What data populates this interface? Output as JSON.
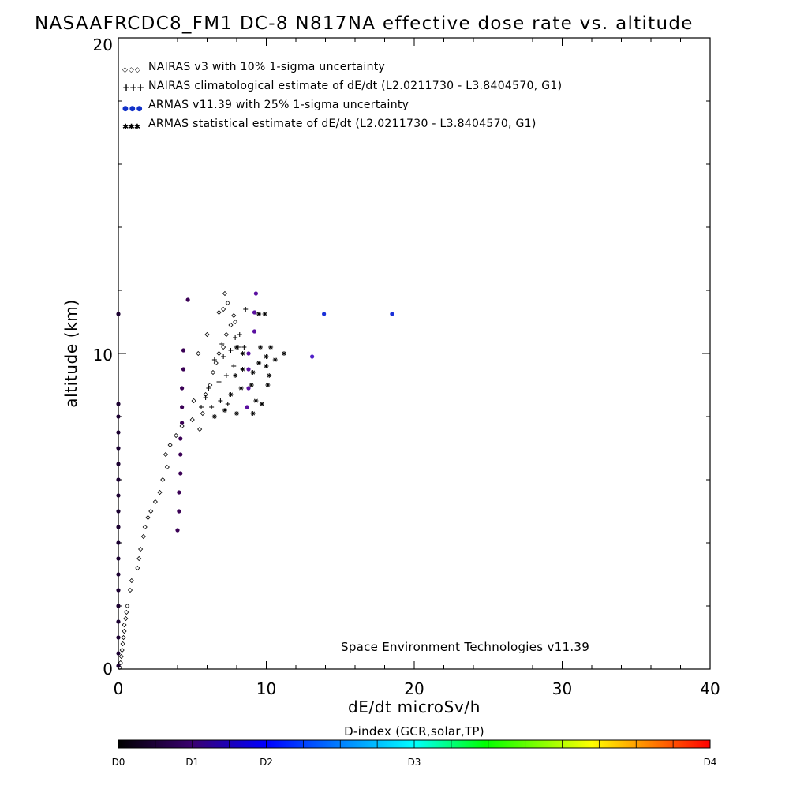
{
  "chart_data": {
    "type": "scatter",
    "title": "NASAAFRCDC8_FM1 DC-8   N817NA effective dose rate vs. altitude",
    "xlabel": "dE/dt microSv/h",
    "ylabel": "altitude (km)",
    "xlim": [
      0,
      40
    ],
    "ylim": [
      0,
      20
    ],
    "x_ticks": [
      "0",
      "10",
      "20",
      "30",
      "40"
    ],
    "y_ticks": [
      "0",
      "10",
      "20"
    ],
    "legend": {
      "placement": "top-left",
      "entries": [
        {
          "marker": "◇◇◇",
          "label": "NAIRAS v3 with 10% 1-sigma uncertainty"
        },
        {
          "marker": "+++",
          "label": "NAIRAS climatological estimate of dE/dt (L2.0211730 - L3.8404570, G1)"
        },
        {
          "marker": "●●●",
          "label": "ARMAS v11.39 with 25% 1-sigma uncertainty"
        },
        {
          "marker": "✱✱✱",
          "label": "ARMAS statistical estimate of dE/dt (L2.0211730 - L3.8404570, G1)"
        }
      ]
    },
    "annotation": "Space Environment Technologies v11.39",
    "colorbar": {
      "title": "D-index (GCR,solar,TP)",
      "labels": [
        "D0",
        "D1",
        "D2",
        "D3",
        "D4"
      ],
      "colors": [
        "#000000",
        "#3a0070",
        "#0000ff",
        "#00ffff",
        "#00ff00",
        "#ffff00",
        "#ff0000"
      ]
    },
    "series": [
      {
        "name": "NAIRAS v3 with 10% 1-sigma uncertainty",
        "marker": "diamond",
        "points": [
          [
            0.1,
            0.05
          ],
          [
            0.15,
            0.2
          ],
          [
            0.2,
            0.4
          ],
          [
            0.25,
            0.6
          ],
          [
            0.3,
            0.8
          ],
          [
            0.35,
            1.0
          ],
          [
            0.4,
            1.2
          ],
          [
            0.4,
            1.4
          ],
          [
            0.5,
            1.6
          ],
          [
            0.55,
            1.8
          ],
          [
            0.6,
            2.0
          ],
          [
            0.8,
            2.5
          ],
          [
            0.9,
            2.8
          ],
          [
            1.3,
            3.2
          ],
          [
            1.4,
            3.5
          ],
          [
            1.5,
            3.8
          ],
          [
            1.7,
            4.2
          ],
          [
            1.8,
            4.5
          ],
          [
            2.0,
            4.8
          ],
          [
            2.2,
            5.0
          ],
          [
            2.5,
            5.3
          ],
          [
            2.8,
            5.6
          ],
          [
            3.0,
            6.0
          ],
          [
            3.3,
            6.4
          ],
          [
            3.2,
            6.8
          ],
          [
            3.5,
            7.1
          ],
          [
            3.9,
            7.4
          ],
          [
            4.3,
            7.7
          ],
          [
            5.0,
            7.9
          ],
          [
            5.5,
            7.6
          ],
          [
            5.7,
            8.1
          ],
          [
            5.1,
            8.5
          ],
          [
            5.9,
            8.7
          ],
          [
            6.2,
            9.0
          ],
          [
            6.4,
            9.4
          ],
          [
            6.6,
            9.7
          ],
          [
            6.8,
            10.0
          ],
          [
            7.1,
            10.2
          ],
          [
            7.3,
            10.6
          ],
          [
            7.6,
            10.9
          ],
          [
            7.8,
            11.2
          ],
          [
            7.1,
            11.4
          ],
          [
            7.4,
            11.6
          ],
          [
            7.2,
            11.9
          ],
          [
            6.8,
            11.3
          ],
          [
            6.0,
            10.6
          ],
          [
            5.4,
            10.0
          ],
          [
            7.9,
            11.0
          ]
        ]
      },
      {
        "name": "NAIRAS climatological estimate of dE/dt (L2.0211730 - L3.8404570, G1)",
        "marker": "plus",
        "points": [
          [
            5.6,
            8.3
          ],
          [
            5.9,
            8.6
          ],
          [
            6.3,
            8.3
          ],
          [
            6.9,
            8.5
          ],
          [
            7.4,
            8.4
          ],
          [
            6.1,
            8.9
          ],
          [
            6.8,
            9.1
          ],
          [
            7.3,
            9.3
          ],
          [
            7.8,
            9.6
          ],
          [
            6.5,
            9.8
          ],
          [
            7.1,
            9.9
          ],
          [
            7.6,
            10.1
          ],
          [
            8.1,
            10.2
          ],
          [
            7.0,
            10.3
          ],
          [
            8.5,
            10.2
          ],
          [
            8.2,
            10.6
          ],
          [
            7.9,
            10.5
          ],
          [
            8.6,
            11.4
          ],
          [
            9.3,
            11.3
          ]
        ]
      },
      {
        "name": "ARMAS v11.39 with 25% 1-sigma uncertainty",
        "marker": "dot",
        "points": [
          [
            0,
            11.25
          ],
          [
            0,
            8.4
          ],
          [
            0,
            8.0
          ],
          [
            0,
            7.5
          ],
          [
            0,
            7.0
          ],
          [
            0,
            6.5
          ],
          [
            0,
            6.0
          ],
          [
            0,
            5.5
          ],
          [
            0,
            5.0
          ],
          [
            0,
            4.5
          ],
          [
            0,
            4.0
          ],
          [
            0,
            3.5
          ],
          [
            0,
            3.0
          ],
          [
            0,
            2.5
          ],
          [
            0,
            2.0
          ],
          [
            0,
            1.5
          ],
          [
            0,
            1.0
          ],
          [
            0,
            0.5
          ],
          [
            0,
            0.1
          ],
          [
            4.0,
            4.4
          ],
          [
            4.1,
            5.0
          ],
          [
            4.1,
            5.6
          ],
          [
            4.2,
            6.2
          ],
          [
            4.2,
            6.8
          ],
          [
            4.2,
            7.3
          ],
          [
            4.3,
            7.8
          ],
          [
            4.3,
            8.3
          ],
          [
            4.3,
            8.9
          ],
          [
            4.4,
            9.5
          ],
          [
            4.4,
            10.1
          ],
          [
            4.7,
            11.7
          ],
          [
            8.7,
            8.3
          ],
          [
            8.8,
            8.9
          ],
          [
            8.8,
            9.5
          ],
          [
            8.8,
            10.0
          ],
          [
            9.2,
            10.7
          ],
          [
            9.2,
            11.3
          ],
          [
            9.3,
            11.9
          ],
          [
            13.1,
            9.9
          ],
          [
            13.9,
            11.25
          ],
          [
            18.5,
            11.25
          ]
        ]
      },
      {
        "name": "ARMAS statistical estimate of dE/dt (L2.0211730 - L3.8404570, G1)",
        "marker": "asterisk",
        "points": [
          [
            6.5,
            8.0
          ],
          [
            7.2,
            8.2
          ],
          [
            8.0,
            8.1
          ],
          [
            9.1,
            8.1
          ],
          [
            9.3,
            8.5
          ],
          [
            7.6,
            8.7
          ],
          [
            8.3,
            8.9
          ],
          [
            9.0,
            9.0
          ],
          [
            7.9,
            9.3
          ],
          [
            8.4,
            9.5
          ],
          [
            9.1,
            9.4
          ],
          [
            9.5,
            9.7
          ],
          [
            10.0,
            9.6
          ],
          [
            10.2,
            9.3
          ],
          [
            10.0,
            9.9
          ],
          [
            10.6,
            9.8
          ],
          [
            11.2,
            10.0
          ],
          [
            9.6,
            10.2
          ],
          [
            10.3,
            10.2
          ],
          [
            9.9,
            11.25
          ],
          [
            9.5,
            11.25
          ],
          [
            8.0,
            10.2
          ],
          [
            8.4,
            10.0
          ],
          [
            9.7,
            8.4
          ],
          [
            10.1,
            9.0
          ]
        ]
      }
    ]
  }
}
